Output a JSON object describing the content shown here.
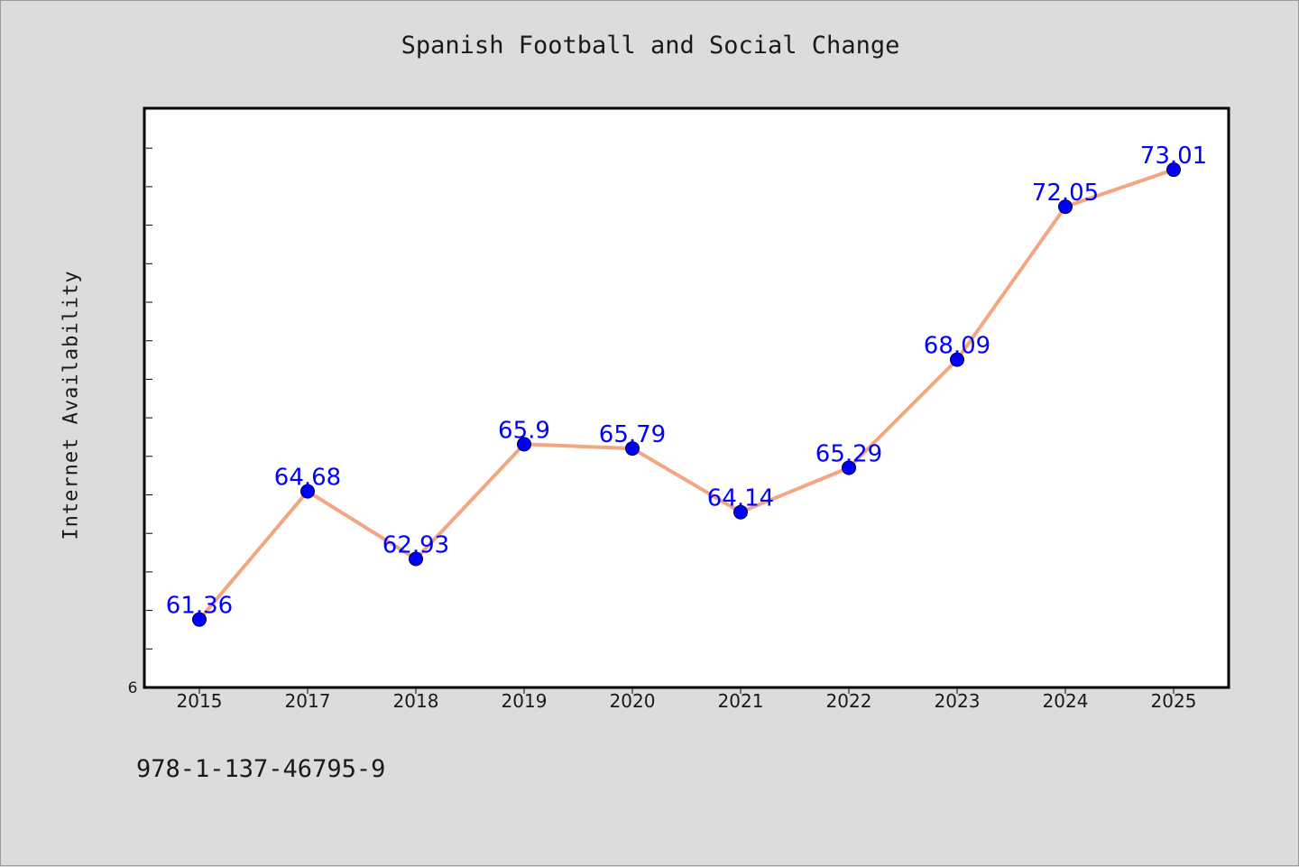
{
  "chart_data": {
    "type": "line",
    "title": "Spanish Football and Social Change",
    "xlabel": "",
    "ylabel": "Internet Availability",
    "categories": [
      "2015",
      "2017",
      "2018",
      "2019",
      "2020",
      "2021",
      "2022",
      "2023",
      "2024",
      "2025"
    ],
    "series": [
      {
        "values": [
          61.36,
          64.68,
          62.93,
          65.9,
          65.79,
          64.14,
          65.29,
          68.09,
          72.05,
          73.01
        ],
        "value_labels": [
          "61.36",
          "64.68",
          "62.93",
          "65.9",
          "65.79",
          "64.14",
          "65.29",
          "68.09",
          "72.05",
          "73.01"
        ],
        "line_color": "#f4a582",
        "marker_color": "#0000ff",
        "label_color": "#0000ff"
      }
    ],
    "ylim": [
      59.6,
      74.6
    ],
    "y_tick_label": "6",
    "grid": false,
    "legend": "none"
  },
  "footer_text": "978-1-137-46795-9",
  "colors": {
    "background": "#dcdcdc",
    "plot_background": "#ffffff",
    "axes": "#000000"
  }
}
